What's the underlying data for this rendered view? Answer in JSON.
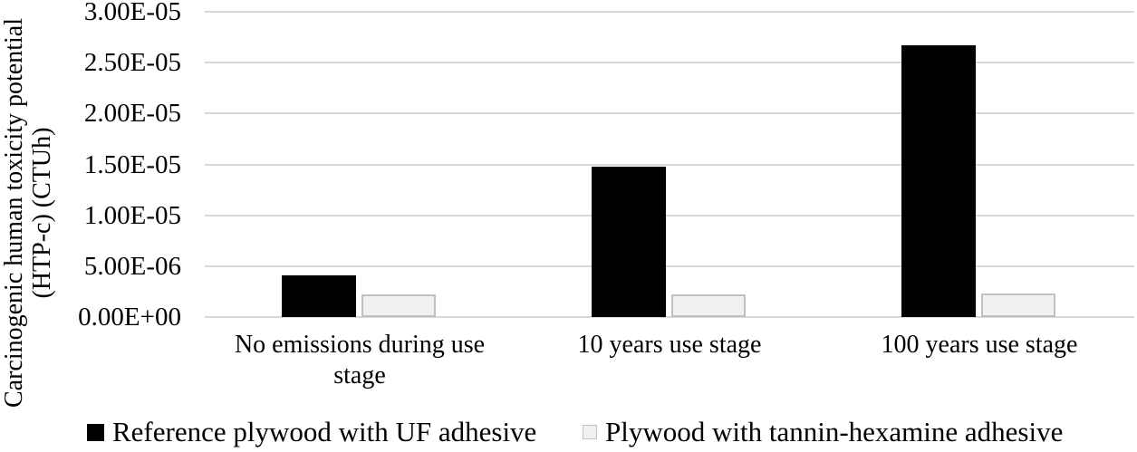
{
  "chart_data": {
    "type": "bar",
    "title": "",
    "categories": [
      "No emissions during use stage",
      "10 years use stage",
      "100 years use stage"
    ],
    "series": [
      {
        "name": "Reference plywood with UF adhesive",
        "fill": "#000000",
        "border": "#000000",
        "values": [
          4.1e-06,
          1.48e-05,
          2.67e-05
        ]
      },
      {
        "name": "Plywood with tannin-hexamine adhesive",
        "fill": "#f1f1f0",
        "border": "#c0c0c0",
        "values": [
          2.2e-06,
          2.2e-06,
          2.3e-06
        ]
      }
    ],
    "ylabel_line1": "Carcinogenic human toxicity potential",
    "ylabel_line2": "(HTP-c) (CTUh)",
    "xlabel": "",
    "yticks": [
      "3.00E-05",
      "2.50E-05",
      "2.00E-05",
      "1.50E-05",
      "1.00E-05",
      "5.00E-06",
      "0.00E+00"
    ],
    "ylim": [
      0,
      3e-05
    ],
    "grid": true,
    "gridline_color": "#d9d9d9",
    "legend_position": "bottom",
    "background_color": "#ffffff",
    "text_color": "#000000"
  }
}
